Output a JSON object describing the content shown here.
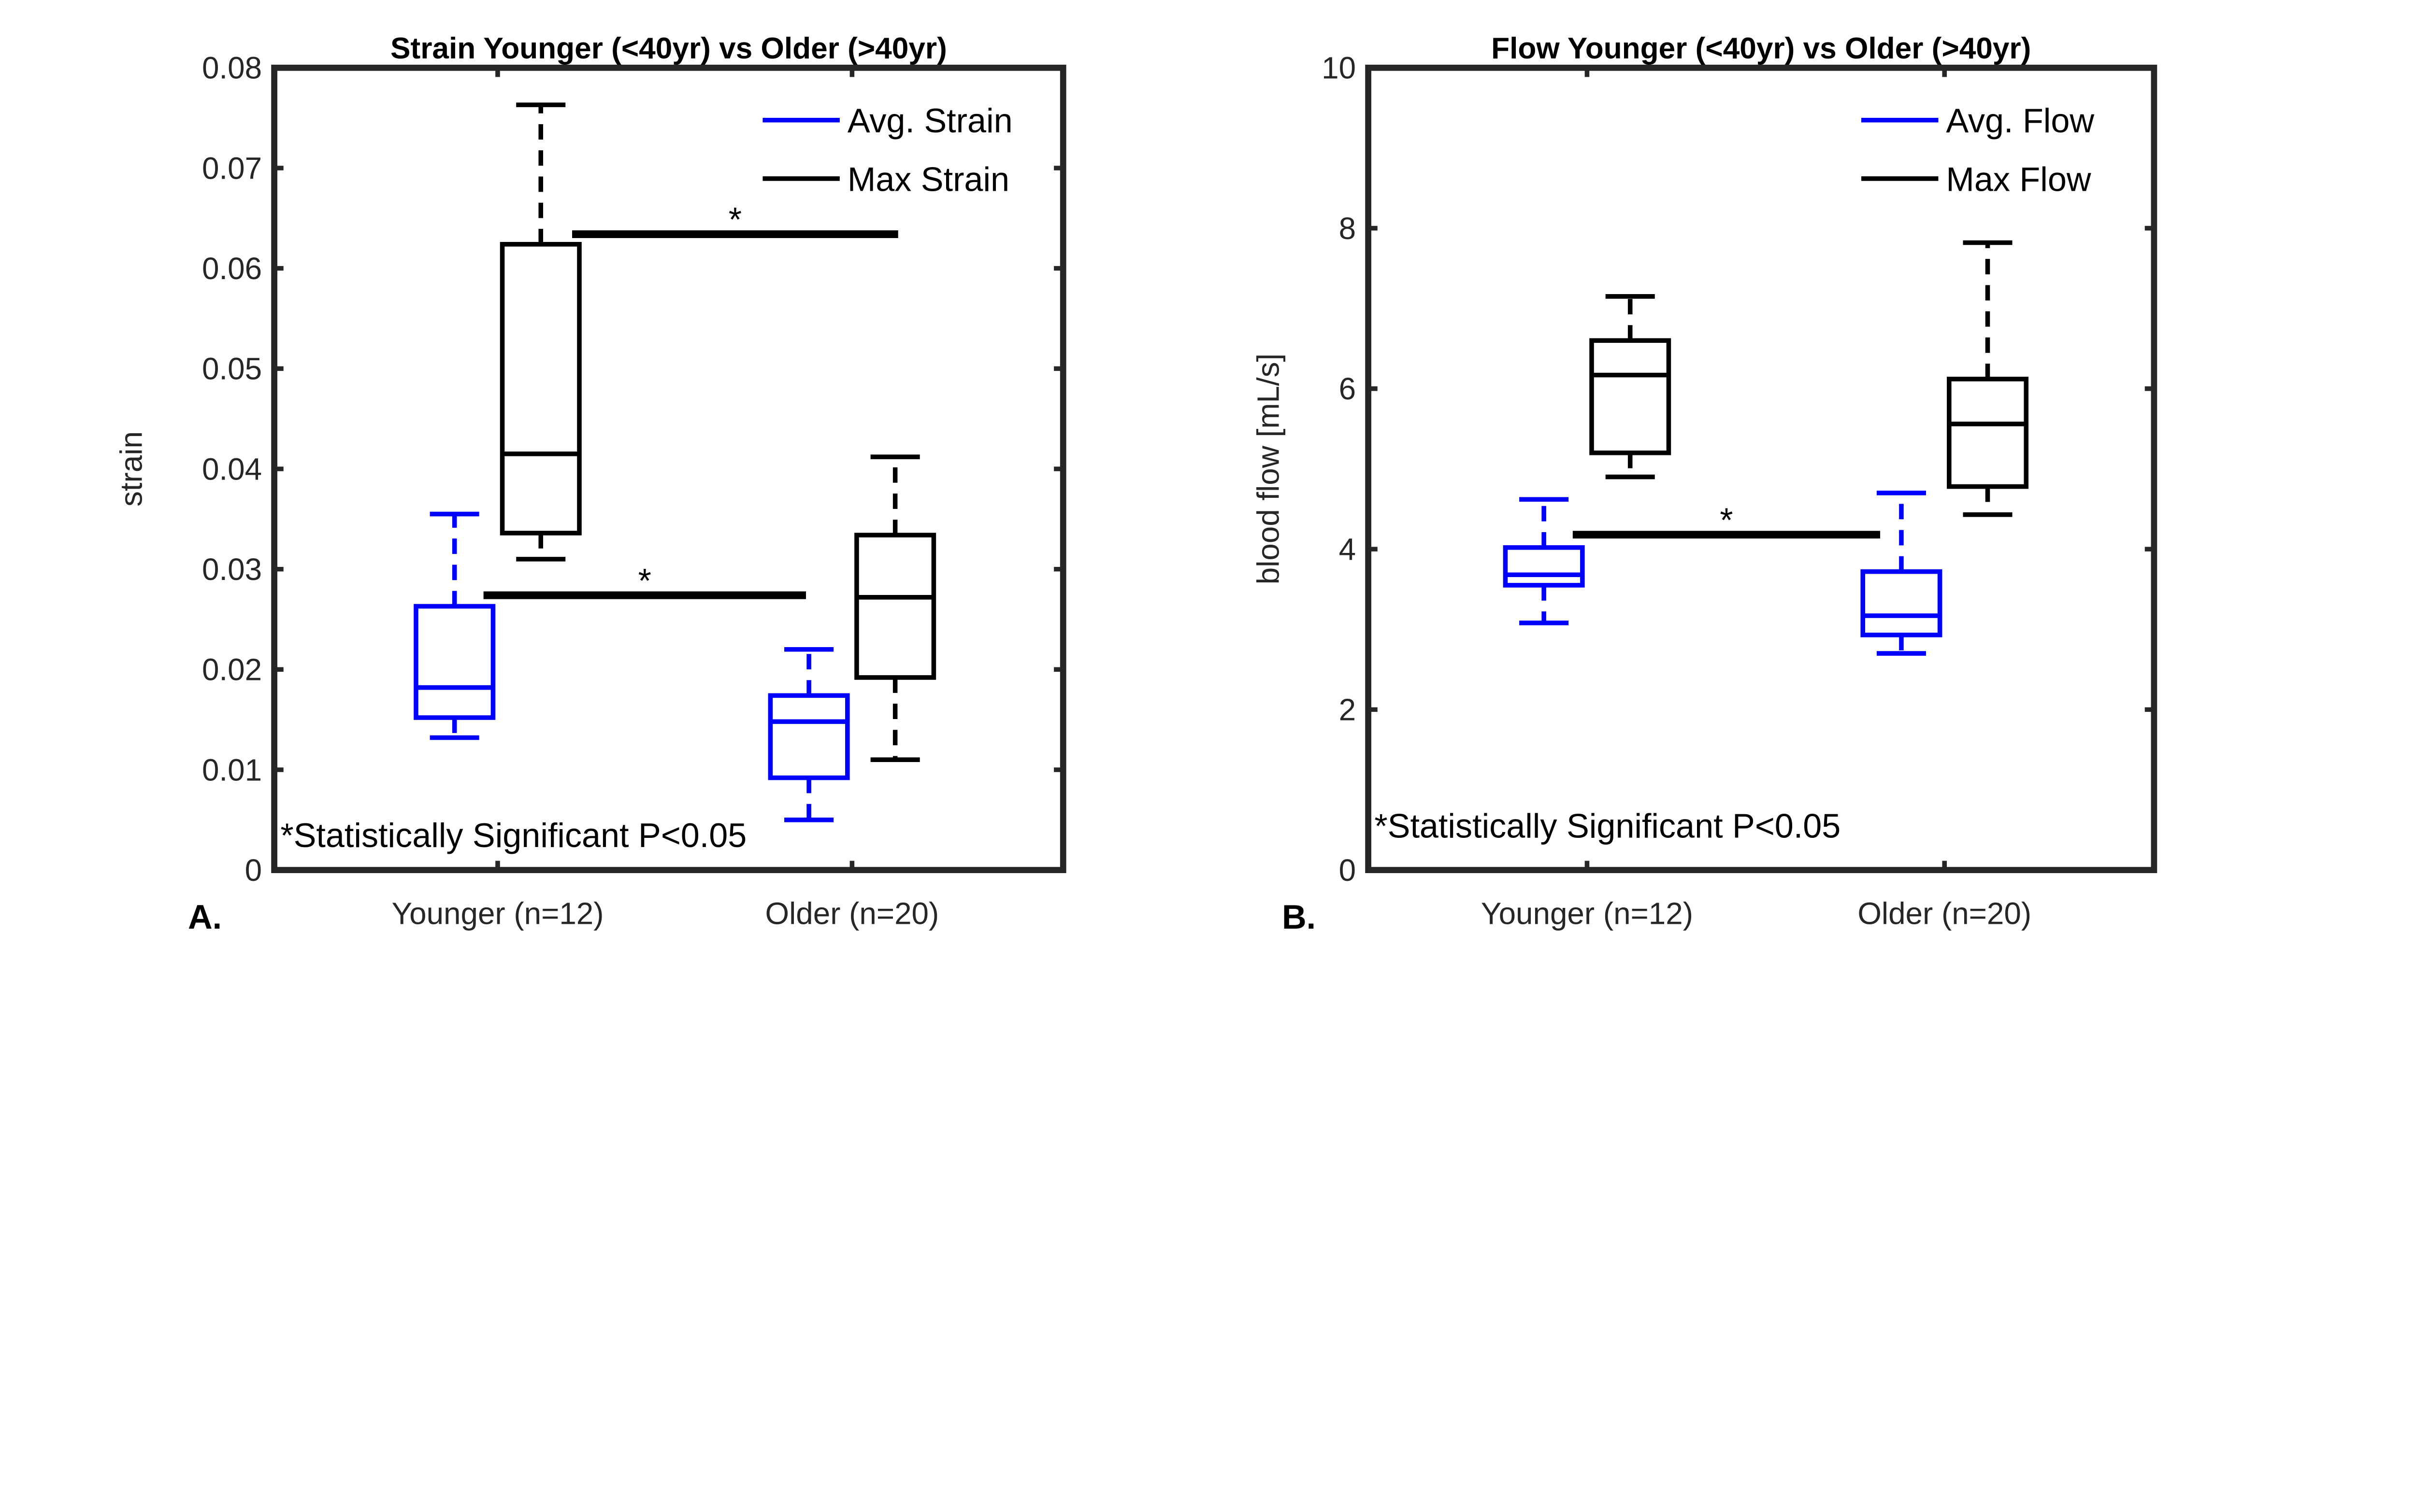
{
  "colors": {
    "avg": "#0000ff",
    "max": "#000000",
    "axis": "#262626"
  },
  "chart_data": [
    {
      "type": "box",
      "panel_label": "A.",
      "title": "Strain Younger (<40yr) vs Older (>40yr)",
      "xlabel": "",
      "ylabel": "strain",
      "ylim": [
        0,
        0.08
      ],
      "yticks": [
        "0",
        "0.01",
        "0.02",
        "0.03",
        "0.04",
        "0.05",
        "0.06",
        "0.07",
        "0.08"
      ],
      "ytick_values": [
        0,
        0.01,
        0.02,
        0.03,
        0.04,
        0.05,
        0.06,
        0.07,
        0.08
      ],
      "categories": [
        "Younger (n=12)",
        "Older (n=20)"
      ],
      "legend": {
        "placement": "top-right",
        "entries": [
          "Avg. Strain",
          "Max Strain"
        ]
      },
      "series": [
        {
          "name": "Avg. Strain",
          "color": "#0000ff",
          "boxes": [
            {
              "min": 0.0132,
              "q1": 0.0152,
              "median": 0.0182,
              "q3": 0.0263,
              "max": 0.0355
            },
            {
              "min": 0.005,
              "q1": 0.0092,
              "median": 0.0148,
              "q3": 0.0174,
              "max": 0.022
            }
          ]
        },
        {
          "name": "Max Strain",
          "color": "#000000",
          "boxes": [
            {
              "min": 0.031,
              "q1": 0.0336,
              "median": 0.0415,
              "q3": 0.0624,
              "max": 0.0763
            },
            {
              "min": 0.011,
              "q1": 0.0192,
              "median": 0.0272,
              "q3": 0.0334,
              "max": 0.0412
            }
          ]
        }
      ],
      "significance": [
        {
          "y": 0.0634,
          "from": 1.21,
          "to": 2.13,
          "label": "*"
        },
        {
          "y": 0.0274,
          "from": 0.96,
          "to": 1.87,
          "label": "*"
        }
      ],
      "annotation": "*Statistically Significant P<0.05"
    },
    {
      "type": "box",
      "panel_label": "B.",
      "title": "Flow Younger (<40yr) vs Older (>40yr)",
      "xlabel": "",
      "ylabel": "blood flow [mL/s]",
      "ylim": [
        0,
        10
      ],
      "yticks": [
        "0",
        "2",
        "4",
        "6",
        "8",
        "10"
      ],
      "ytick_values": [
        0,
        2,
        4,
        6,
        8,
        10
      ],
      "categories": [
        "Younger (n=12)",
        "Older (n=20)"
      ],
      "legend": {
        "placement": "top-right",
        "entries": [
          "Avg. Flow",
          "Max Flow"
        ]
      },
      "series": [
        {
          "name": "Avg. Flow",
          "color": "#0000ff",
          "boxes": [
            {
              "min": 3.08,
              "q1": 3.55,
              "median": 3.68,
              "q3": 4.02,
              "max": 4.62
            },
            {
              "min": 2.7,
              "q1": 2.93,
              "median": 3.17,
              "q3": 3.72,
              "max": 4.7
            }
          ]
        },
        {
          "name": "Max Flow",
          "color": "#000000",
          "boxes": [
            {
              "min": 4.9,
              "q1": 5.2,
              "median": 6.17,
              "q3": 6.6,
              "max": 7.15
            },
            {
              "min": 4.43,
              "q1": 4.78,
              "median": 5.56,
              "q3": 6.12,
              "max": 7.82
            }
          ]
        }
      ],
      "significance": [
        {
          "y": 4.18,
          "from": 0.96,
          "to": 1.82,
          "label": "*"
        }
      ],
      "annotation": "*Statistically Significant P<0.05"
    }
  ]
}
